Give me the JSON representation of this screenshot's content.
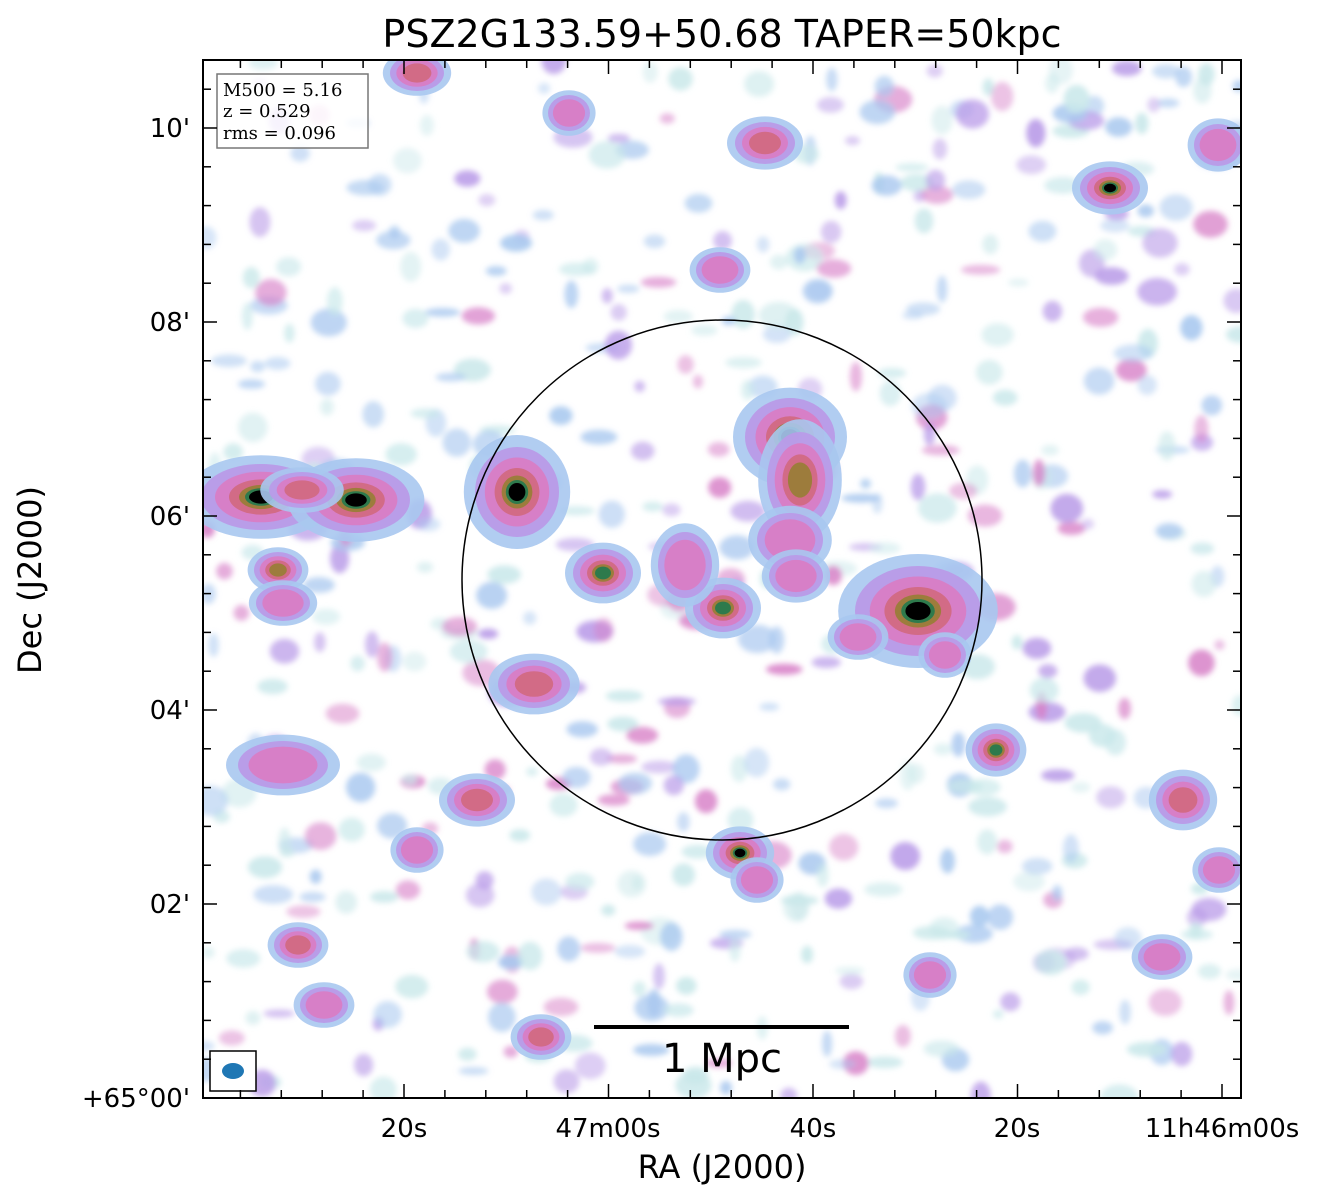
{
  "chart_data": {
    "type": "heatmap",
    "title": "PSZ2G133.59+50.68 TAPER=50kpc",
    "xlabel": "RA (J2000)",
    "ylabel": "Dec (J2000)",
    "x_ticks": [
      "20s",
      "47m00s",
      "40s",
      "20s",
      "11h46m00s"
    ],
    "y_ticks": [
      "+65°00'",
      "02'",
      "04'",
      "06'",
      "08'",
      "10'"
    ],
    "y_tick_values_arcmin": [
      0,
      2,
      4,
      6,
      8,
      10
    ],
    "info_box": {
      "lines": [
        "M500 = 5.16",
        "z = 0.529",
        "rms = 0.096"
      ]
    },
    "scale_bar": {
      "label": "1 Mpc"
    },
    "colormap": [
      "#ffffff",
      "#c9e8ea",
      "#a9c8ef",
      "#b99be8",
      "#d77fc7",
      "#d26b86",
      "#9d7c3c",
      "#2e7a4c",
      "#000000"
    ],
    "circle_color": "#000000",
    "beam_color": "#1f77b4"
  }
}
